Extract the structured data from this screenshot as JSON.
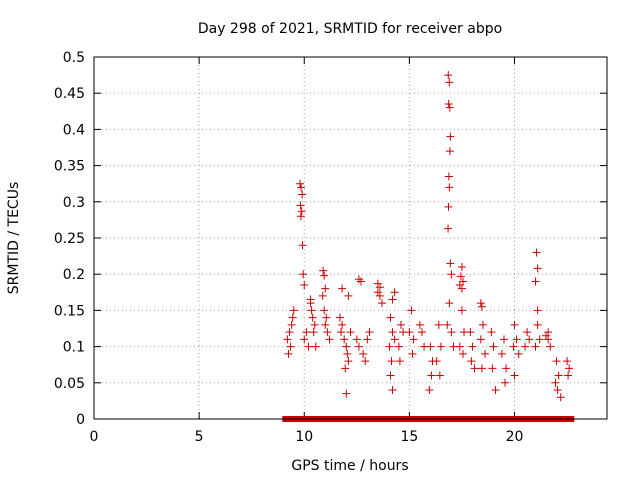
{
  "chart_data": {
    "type": "scatter",
    "title": "Day 298 of 2021, SRMTID for receiver abpo",
    "xlabel": "GPS time / hours",
    "ylabel": "SRMTID / TECUs",
    "xlim": [
      0,
      24.4
    ],
    "ylim": [
      0,
      0.5
    ],
    "x_ticks": [
      0,
      5,
      10,
      15,
      20
    ],
    "x_tick_labels": [
      "0",
      "5",
      "10",
      "15",
      "20"
    ],
    "y_ticks": [
      0,
      0.05,
      0.1,
      0.15,
      0.2,
      0.25,
      0.3,
      0.35,
      0.4,
      0.45,
      0.5
    ],
    "y_tick_labels": [
      "0",
      "0.05",
      "0.1",
      "0.15",
      "0.2",
      "0.25",
      "0.3",
      "0.35",
      "0.4",
      "0.45",
      "0.5"
    ],
    "grid": true,
    "marker_color": "#cc0000",
    "series": [
      {
        "name": "SRMTID",
        "marker": "+",
        "points": [
          [
            9.8,
            0.325
          ],
          [
            9.85,
            0.32
          ],
          [
            9.9,
            0.31
          ],
          [
            9.82,
            0.295
          ],
          [
            9.88,
            0.287
          ],
          [
            9.84,
            0.28
          ],
          [
            9.92,
            0.24
          ],
          [
            9.95,
            0.2
          ],
          [
            10.0,
            0.185
          ],
          [
            10.3,
            0.165
          ],
          [
            10.9,
            0.205
          ],
          [
            10.95,
            0.198
          ],
          [
            11.0,
            0.18
          ],
          [
            10.88,
            0.17
          ],
          [
            11.8,
            0.18
          ],
          [
            12.1,
            0.17
          ],
          [
            12.6,
            0.193
          ],
          [
            12.7,
            0.19
          ],
          [
            13.5,
            0.187
          ],
          [
            13.6,
            0.182
          ],
          [
            14.3,
            0.175
          ],
          [
            14.2,
            0.165
          ],
          [
            16.85,
            0.475
          ],
          [
            16.9,
            0.465
          ],
          [
            16.87,
            0.435
          ],
          [
            16.92,
            0.43
          ],
          [
            16.95,
            0.39
          ],
          [
            16.93,
            0.37
          ],
          [
            16.88,
            0.335
          ],
          [
            16.9,
            0.32
          ],
          [
            16.86,
            0.293
          ],
          [
            16.84,
            0.263
          ],
          [
            16.95,
            0.215
          ],
          [
            17.0,
            0.2
          ],
          [
            17.5,
            0.21
          ],
          [
            17.45,
            0.197
          ],
          [
            17.55,
            0.19
          ],
          [
            17.4,
            0.185
          ],
          [
            17.5,
            0.18
          ],
          [
            18.4,
            0.16
          ],
          [
            18.45,
            0.155
          ],
          [
            21.05,
            0.23
          ],
          [
            21.1,
            0.208
          ],
          [
            21.0,
            0.19
          ],
          [
            21.1,
            0.15
          ],
          [
            21.6,
            0.12
          ],
          [
            9.3,
            0.12
          ],
          [
            9.4,
            0.13
          ],
          [
            9.2,
            0.11
          ],
          [
            9.35,
            0.1
          ],
          [
            9.5,
            0.15
          ],
          [
            9.25,
            0.09
          ],
          [
            9.45,
            0.14
          ],
          [
            10.1,
            0.12
          ],
          [
            10.0,
            0.11
          ],
          [
            10.2,
            0.1
          ],
          [
            10.35,
            0.15
          ],
          [
            10.4,
            0.14
          ],
          [
            10.5,
            0.13
          ],
          [
            10.45,
            0.12
          ],
          [
            10.3,
            0.16
          ],
          [
            10.55,
            0.1
          ],
          [
            11.0,
            0.13
          ],
          [
            11.1,
            0.12
          ],
          [
            11.2,
            0.11
          ],
          [
            10.95,
            0.15
          ],
          [
            11.05,
            0.14
          ],
          [
            11.7,
            0.14
          ],
          [
            11.8,
            0.13
          ],
          [
            11.75,
            0.12
          ],
          [
            11.9,
            0.11
          ],
          [
            12.0,
            0.1
          ],
          [
            12.05,
            0.09
          ],
          [
            12.1,
            0.08
          ],
          [
            11.95,
            0.07
          ],
          [
            12.0,
            0.035
          ],
          [
            12.2,
            0.12
          ],
          [
            12.5,
            0.11
          ],
          [
            12.6,
            0.1
          ],
          [
            12.8,
            0.09
          ],
          [
            12.9,
            0.08
          ],
          [
            13.0,
            0.11
          ],
          [
            13.1,
            0.12
          ],
          [
            13.6,
            0.17
          ],
          [
            13.7,
            0.16
          ],
          [
            13.5,
            0.175
          ],
          [
            14.1,
            0.14
          ],
          [
            14.2,
            0.12
          ],
          [
            14.05,
            0.1
          ],
          [
            14.15,
            0.08
          ],
          [
            14.1,
            0.06
          ],
          [
            14.2,
            0.04
          ],
          [
            14.3,
            0.11
          ],
          [
            14.6,
            0.13
          ],
          [
            14.5,
            0.1
          ],
          [
            14.55,
            0.08
          ],
          [
            14.7,
            0.12
          ],
          [
            15.1,
            0.15
          ],
          [
            15.0,
            0.12
          ],
          [
            15.2,
            0.11
          ],
          [
            15.15,
            0.09
          ],
          [
            15.6,
            0.12
          ],
          [
            15.7,
            0.1
          ],
          [
            15.5,
            0.13
          ],
          [
            16.0,
            0.1
          ],
          [
            16.1,
            0.08
          ],
          [
            16.05,
            0.06
          ],
          [
            15.95,
            0.04
          ],
          [
            16.4,
            0.13
          ],
          [
            16.5,
            0.1
          ],
          [
            16.3,
            0.08
          ],
          [
            16.45,
            0.06
          ],
          [
            16.8,
            0.13
          ],
          [
            16.9,
            0.16
          ],
          [
            17.0,
            0.12
          ],
          [
            17.1,
            0.1
          ],
          [
            17.5,
            0.15
          ],
          [
            17.6,
            0.12
          ],
          [
            17.4,
            0.1
          ],
          [
            17.55,
            0.09
          ],
          [
            17.9,
            0.12
          ],
          [
            18.0,
            0.1
          ],
          [
            17.95,
            0.08
          ],
          [
            18.1,
            0.07
          ],
          [
            18.5,
            0.13
          ],
          [
            18.4,
            0.11
          ],
          [
            18.6,
            0.09
          ],
          [
            18.45,
            0.07
          ],
          [
            18.9,
            0.12
          ],
          [
            19.0,
            0.1
          ],
          [
            18.95,
            0.07
          ],
          [
            19.1,
            0.04
          ],
          [
            19.5,
            0.11
          ],
          [
            19.4,
            0.09
          ],
          [
            19.6,
            0.07
          ],
          [
            19.55,
            0.05
          ],
          [
            20.0,
            0.13
          ],
          [
            20.1,
            0.11
          ],
          [
            19.95,
            0.1
          ],
          [
            20.2,
            0.09
          ],
          [
            20.0,
            0.06
          ],
          [
            20.6,
            0.12
          ],
          [
            20.7,
            0.11
          ],
          [
            20.5,
            0.1
          ],
          [
            21.1,
            0.13
          ],
          [
            21.2,
            0.11
          ],
          [
            21.0,
            0.1
          ],
          [
            21.6,
            0.11
          ],
          [
            21.7,
            0.1
          ],
          [
            21.5,
            0.115
          ],
          [
            22.0,
            0.08
          ],
          [
            22.1,
            0.06
          ],
          [
            21.95,
            0.05
          ],
          [
            22.05,
            0.04
          ],
          [
            22.2,
            0.03
          ],
          [
            22.5,
            0.08
          ],
          [
            22.6,
            0.07
          ],
          [
            22.55,
            0.06
          ]
        ]
      },
      {
        "name": "zero-baseline",
        "marker": "square",
        "x": [
          9.1,
          9.3,
          9.5,
          9.7,
          9.9,
          10.1,
          10.3,
          10.5,
          10.7,
          10.9,
          11.1,
          11.3,
          11.5,
          11.7,
          11.9,
          12.1,
          12.3,
          12.5,
          12.7,
          12.9,
          13.1,
          13.3,
          13.5,
          13.7,
          13.9,
          14.1,
          14.3,
          14.5,
          14.7,
          14.9,
          15.1,
          15.3,
          15.5,
          15.7,
          15.9,
          16.1,
          16.3,
          16.5,
          16.7,
          16.9,
          17.1,
          17.3,
          17.5,
          17.7,
          17.9,
          18.1,
          18.3,
          18.5,
          18.7,
          18.9,
          19.1,
          19.3,
          19.5,
          19.7,
          19.9,
          20.1,
          20.3,
          20.5,
          20.7,
          20.9,
          21.1,
          21.3,
          21.5,
          21.7,
          21.9,
          22.1,
          22.3,
          22.5,
          22.7
        ],
        "y": 0
      }
    ]
  }
}
